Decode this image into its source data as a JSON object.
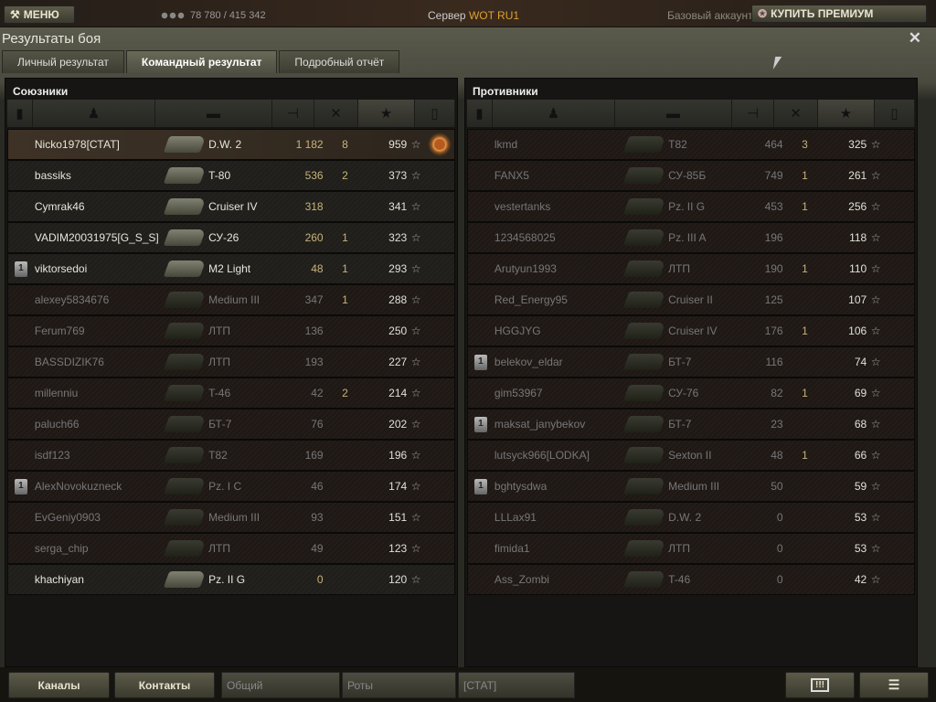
{
  "topbar": {
    "menu_label": "МЕНЮ",
    "crew_count": "78 780 / 415 342",
    "server_label": "Сервер",
    "server_name": "WOT RU1",
    "account_type": "Базовый аккаунт",
    "premium_label": "КУПИТЬ ПРЕМИУМ"
  },
  "window": {
    "title": "Результаты боя",
    "close_icon": "close-icon"
  },
  "tabs": [
    {
      "label": "Личный результат",
      "active": false
    },
    {
      "label": "Командный результат",
      "active": true
    },
    {
      "label": "Подробный отчёт",
      "active": false
    }
  ],
  "colors": {
    "accent": "#e0a030",
    "damage_alive": "#c8b27a",
    "dead_text": "#777777"
  },
  "columns": [
    "rank-icon",
    "player-icon",
    "tank-icon",
    "damage-icon",
    "frags-icon",
    "xp-star-icon",
    "medal-icon"
  ],
  "sorted_column": "xp-star-icon",
  "allies": {
    "title": "Союзники",
    "rows": [
      {
        "name": "Nicko1978[СТАТ]",
        "tank": "D.W. 2",
        "damage": "1 182",
        "frags": "8",
        "xp": "959",
        "alive": true,
        "me": true,
        "medal": true
      },
      {
        "name": "bassiks",
        "tank": "T-80",
        "damage": "536",
        "frags": "2",
        "xp": "373",
        "alive": true
      },
      {
        "name": "Cymrak46",
        "tank": "Cruiser IV",
        "damage": "318",
        "frags": "",
        "xp": "341",
        "alive": true
      },
      {
        "name": "VADIM20031975[G_S_S]",
        "tank": "СУ-26",
        "damage": "260",
        "frags": "1",
        "xp": "323",
        "alive": true
      },
      {
        "name": "viktorsedoi",
        "tank": "M2 Light",
        "damage": "48",
        "frags": "1",
        "xp": "293",
        "alive": true,
        "rank": "1"
      },
      {
        "name": "alexey5834676",
        "tank": "Medium III",
        "damage": "347",
        "frags": "1",
        "xp": "288",
        "alive": false
      },
      {
        "name": "Ferum769",
        "tank": "ЛТП",
        "damage": "136",
        "frags": "",
        "xp": "250",
        "alive": false
      },
      {
        "name": "BASSDIZIK76",
        "tank": "ЛТП",
        "damage": "193",
        "frags": "",
        "xp": "227",
        "alive": false
      },
      {
        "name": "millenniu",
        "tank": "T-46",
        "damage": "42",
        "frags": "2",
        "xp": "214",
        "alive": false
      },
      {
        "name": "paluch66",
        "tank": "БТ-7",
        "damage": "76",
        "frags": "",
        "xp": "202",
        "alive": false
      },
      {
        "name": "isdf123",
        "tank": "T82",
        "damage": "169",
        "frags": "",
        "xp": "196",
        "alive": false
      },
      {
        "name": "AlexNovokuzneck",
        "tank": "Pz. I C",
        "damage": "46",
        "frags": "",
        "xp": "174",
        "alive": false,
        "rank": "1"
      },
      {
        "name": "EvGeniy0903",
        "tank": "Medium III",
        "damage": "93",
        "frags": "",
        "xp": "151",
        "alive": false
      },
      {
        "name": "serga_chip",
        "tank": "ЛТП",
        "damage": "49",
        "frags": "",
        "xp": "123",
        "alive": false
      },
      {
        "name": "khachiyan",
        "tank": "Pz. II G",
        "damage": "0",
        "frags": "",
        "xp": "120",
        "alive": true
      }
    ]
  },
  "enemies": {
    "title": "Противники",
    "rows": [
      {
        "name": "lkmd",
        "tank": "T82",
        "damage": "464",
        "frags": "3",
        "xp": "325",
        "alive": false
      },
      {
        "name": "FANX5",
        "tank": "СУ-85Б",
        "damage": "749",
        "frags": "1",
        "xp": "261",
        "alive": false
      },
      {
        "name": "vestertanks",
        "tank": "Pz. II G",
        "damage": "453",
        "frags": "1",
        "xp": "256",
        "alive": false
      },
      {
        "name": "1234568025",
        "tank": "Pz. III A",
        "damage": "196",
        "frags": "",
        "xp": "118",
        "alive": false
      },
      {
        "name": "Arutyun1993",
        "tank": "ЛТП",
        "damage": "190",
        "frags": "1",
        "xp": "110",
        "alive": false
      },
      {
        "name": "Red_Energy95",
        "tank": "Cruiser II",
        "damage": "125",
        "frags": "",
        "xp": "107",
        "alive": false
      },
      {
        "name": "HGGJYG",
        "tank": "Cruiser IV",
        "damage": "176",
        "frags": "1",
        "xp": "106",
        "alive": false
      },
      {
        "name": "belekov_eldar",
        "tank": "БТ-7",
        "damage": "116",
        "frags": "",
        "xp": "74",
        "alive": false,
        "rank": "1"
      },
      {
        "name": "gim53967",
        "tank": "СУ-76",
        "damage": "82",
        "frags": "1",
        "xp": "69",
        "alive": false
      },
      {
        "name": "maksat_janybekov",
        "tank": "БТ-7",
        "damage": "23",
        "frags": "",
        "xp": "68",
        "alive": false,
        "rank": "1"
      },
      {
        "name": "lutsyck966[LODKA]",
        "tank": "Sexton II",
        "damage": "48",
        "frags": "1",
        "xp": "66",
        "alive": false
      },
      {
        "name": "bghtysdwa",
        "tank": "Medium III",
        "damage": "50",
        "frags": "",
        "xp": "59",
        "alive": false,
        "rank": "1"
      },
      {
        "name": "LLLax91",
        "tank": "D.W. 2",
        "damage": "0",
        "frags": "",
        "xp": "53",
        "alive": false
      },
      {
        "name": "fimida1",
        "tank": "ЛТП",
        "damage": "0",
        "frags": "",
        "xp": "53",
        "alive": false
      },
      {
        "name": "Ass_Zombi",
        "tank": "T-46",
        "damage": "0",
        "frags": "",
        "xp": "42",
        "alive": false
      }
    ]
  },
  "bottombar": {
    "channels": "Каналы",
    "contacts": "Контакты",
    "chat_tabs": [
      "Общий",
      "Роты",
      "[СТАТ]"
    ]
  }
}
